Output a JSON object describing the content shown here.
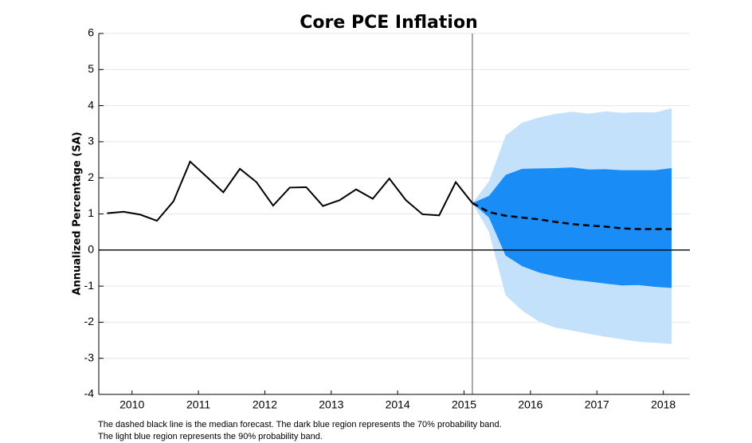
{
  "chart_data": {
    "type": "fan",
    "title": "Core PCE Inflation",
    "y_label": "Annualized Percentage (SA)",
    "notes": [
      "The dashed black line is the median forecast. The dark blue region represents the 70% probability band.",
      "The light blue region represents the 90% probability band."
    ],
    "x": [
      2010.125,
      2010.375,
      2010.625,
      2010.875,
      2011.125,
      2011.375,
      2011.625,
      2011.875,
      2012.125,
      2012.375,
      2012.625,
      2012.875,
      2013.125,
      2013.375,
      2013.625,
      2013.875,
      2014.125,
      2014.375,
      2014.625,
      2014.875,
      2015.125,
      2015.375,
      2015.625,
      2015.875,
      2016.125,
      2016.375,
      2016.625,
      2016.875,
      2017.125,
      2017.375,
      2017.625,
      2017.875,
      2018.125,
      2018.375,
      2018.625
    ],
    "bands": [
      {
        "color": "#c4e1fb",
        "lower": [
          null,
          null,
          null,
          null,
          null,
          null,
          null,
          null,
          null,
          null,
          null,
          null,
          null,
          null,
          null,
          null,
          null,
          null,
          null,
          null,
          null,
          null,
          1.3,
          0.5,
          -1.25,
          -1.68,
          -1.98,
          -2.15,
          -2.23,
          -2.32,
          -2.4,
          -2.47,
          -2.54,
          -2.57,
          -2.6
        ],
        "upper": [
          null,
          null,
          null,
          null,
          null,
          null,
          null,
          null,
          null,
          null,
          null,
          null,
          null,
          null,
          null,
          null,
          null,
          null,
          null,
          null,
          null,
          null,
          1.3,
          1.9,
          3.17,
          3.53,
          3.67,
          3.77,
          3.83,
          3.78,
          3.84,
          3.8,
          3.82,
          3.81,
          3.93
        ]
      },
      {
        "color": "#1a8cf5",
        "lower": [
          null,
          null,
          null,
          null,
          null,
          null,
          null,
          null,
          null,
          null,
          null,
          null,
          null,
          null,
          null,
          null,
          null,
          null,
          null,
          null,
          null,
          null,
          1.3,
          0.9,
          -0.15,
          -0.45,
          -0.62,
          -0.73,
          -0.82,
          -0.87,
          -0.93,
          -0.98,
          -0.97,
          -1.02,
          -1.05
        ],
        "upper": [
          null,
          null,
          null,
          null,
          null,
          null,
          null,
          null,
          null,
          null,
          null,
          null,
          null,
          null,
          null,
          null,
          null,
          null,
          null,
          null,
          null,
          null,
          1.3,
          1.5,
          2.08,
          2.25,
          2.26,
          2.27,
          2.29,
          2.23,
          2.24,
          2.21,
          2.21,
          2.21,
          2.27
        ]
      }
    ],
    "series": [
      {
        "color": "#000000",
        "dashed": false,
        "values": [
          1.02,
          1.06,
          0.98,
          0.81,
          1.35,
          2.45,
          2.03,
          1.6,
          2.25,
          1.88,
          1.23,
          1.73,
          1.74,
          1.22,
          1.38,
          1.68,
          1.42,
          1.98,
          1.38,
          0.99,
          0.96,
          1.88,
          1.3,
          null,
          null,
          null,
          null,
          null,
          null,
          null,
          null,
          null,
          null,
          null,
          null
        ]
      },
      {
        "color": "#000000",
        "dashed": true,
        "values": [
          null,
          null,
          null,
          null,
          null,
          null,
          null,
          null,
          null,
          null,
          null,
          null,
          null,
          null,
          null,
          null,
          null,
          null,
          null,
          null,
          null,
          null,
          1.3,
          1.05,
          0.95,
          0.9,
          0.85,
          0.78,
          0.72,
          0.68,
          0.65,
          0.6,
          0.58,
          0.58,
          0.58
        ]
      }
    ],
    "forecast_start": 2015.625,
    "xlim": [
      2010,
      2018.9
    ],
    "xticks": [
      {
        "value": 2010.5,
        "label": "2010"
      },
      {
        "value": 2011.5,
        "label": "2011"
      },
      {
        "value": 2012.5,
        "label": "2012"
      },
      {
        "value": 2013.5,
        "label": "2013"
      },
      {
        "value": 2014.5,
        "label": "2014"
      },
      {
        "value": 2015.5,
        "label": "2015"
      },
      {
        "value": 2016.5,
        "label": "2016"
      },
      {
        "value": 2017.5,
        "label": "2017"
      },
      {
        "value": 2018.5,
        "label": "2018"
      }
    ],
    "ylim": [
      -4,
      6
    ],
    "yticks": [
      -4,
      -3,
      -2,
      -1,
      0,
      1,
      2,
      3,
      4,
      5,
      6
    ],
    "grid": true
  }
}
